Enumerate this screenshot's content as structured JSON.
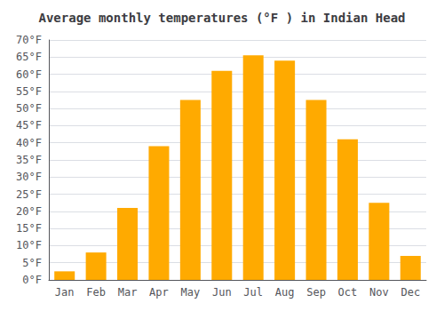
{
  "chart_data": {
    "type": "bar",
    "title": "Average monthly temperatures (°F ) in Indian Head",
    "categories": [
      "Jan",
      "Feb",
      "Mar",
      "Apr",
      "May",
      "Jun",
      "Jul",
      "Aug",
      "Sep",
      "Oct",
      "Nov",
      "Dec"
    ],
    "values": [
      2.5,
      8.0,
      21.0,
      39.0,
      52.5,
      61.0,
      65.5,
      64.0,
      52.5,
      41.0,
      22.5,
      7.0
    ],
    "color": "#FFAA00",
    "ylim": [
      0,
      70
    ],
    "yticks": [
      {
        "value": 0,
        "label": "0°F"
      },
      {
        "value": 5,
        "label": "5°F"
      },
      {
        "value": 10,
        "label": "10°F"
      },
      {
        "value": 15,
        "label": "15°F"
      },
      {
        "value": 20,
        "label": "20°F"
      },
      {
        "value": 25,
        "label": "25°F"
      },
      {
        "value": 30,
        "label": "30°F"
      },
      {
        "value": 35,
        "label": "35°F"
      },
      {
        "value": 40,
        "label": "40°F"
      },
      {
        "value": 45,
        "label": "45°F"
      },
      {
        "value": 50,
        "label": "50°F"
      },
      {
        "value": 55,
        "label": "55°F"
      },
      {
        "value": 60,
        "label": "60°F"
      },
      {
        "value": 65,
        "label": "65°F"
      },
      {
        "value": 70,
        "label": "70°F"
      }
    ],
    "grid": true
  }
}
